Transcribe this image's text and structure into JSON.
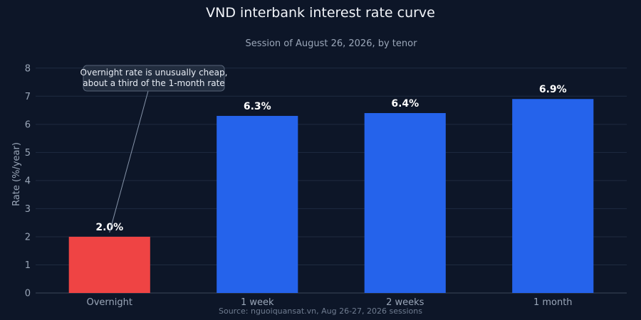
{
  "chart_data": {
    "type": "bar",
    "title": "VND interbank interest rate curve",
    "subtitle": "Session of August 26, 2026, by tenor",
    "xlabel": "",
    "ylabel": "Rate (%/year)",
    "ylim": [
      0,
      8.5
    ],
    "yticks": [
      0,
      1,
      2,
      3,
      4,
      5,
      6,
      7,
      8
    ],
    "grid": true,
    "categories": [
      "Overnight",
      "1 week",
      "2 weeks",
      "1 month"
    ],
    "values": [
      2.0,
      6.3,
      6.4,
      6.9
    ],
    "value_labels": [
      "2.0%",
      "6.3%",
      "6.4%",
      "6.9%"
    ],
    "colors": [
      "#ef4444",
      "#2563eb",
      "#2563eb",
      "#2563eb"
    ],
    "annotation": {
      "lines": [
        "Overnight rate is unusually cheap,",
        "about a third of the 1-month rate"
      ],
      "target_category": "Overnight",
      "target_value": 2.0
    },
    "source": "Source: nguoiquansat.vn, Aug 26-27, 2026 sessions"
  },
  "colors": {
    "background": "#0d1628",
    "highlight_bar": "#ef4444",
    "bar": "#2563eb"
  }
}
